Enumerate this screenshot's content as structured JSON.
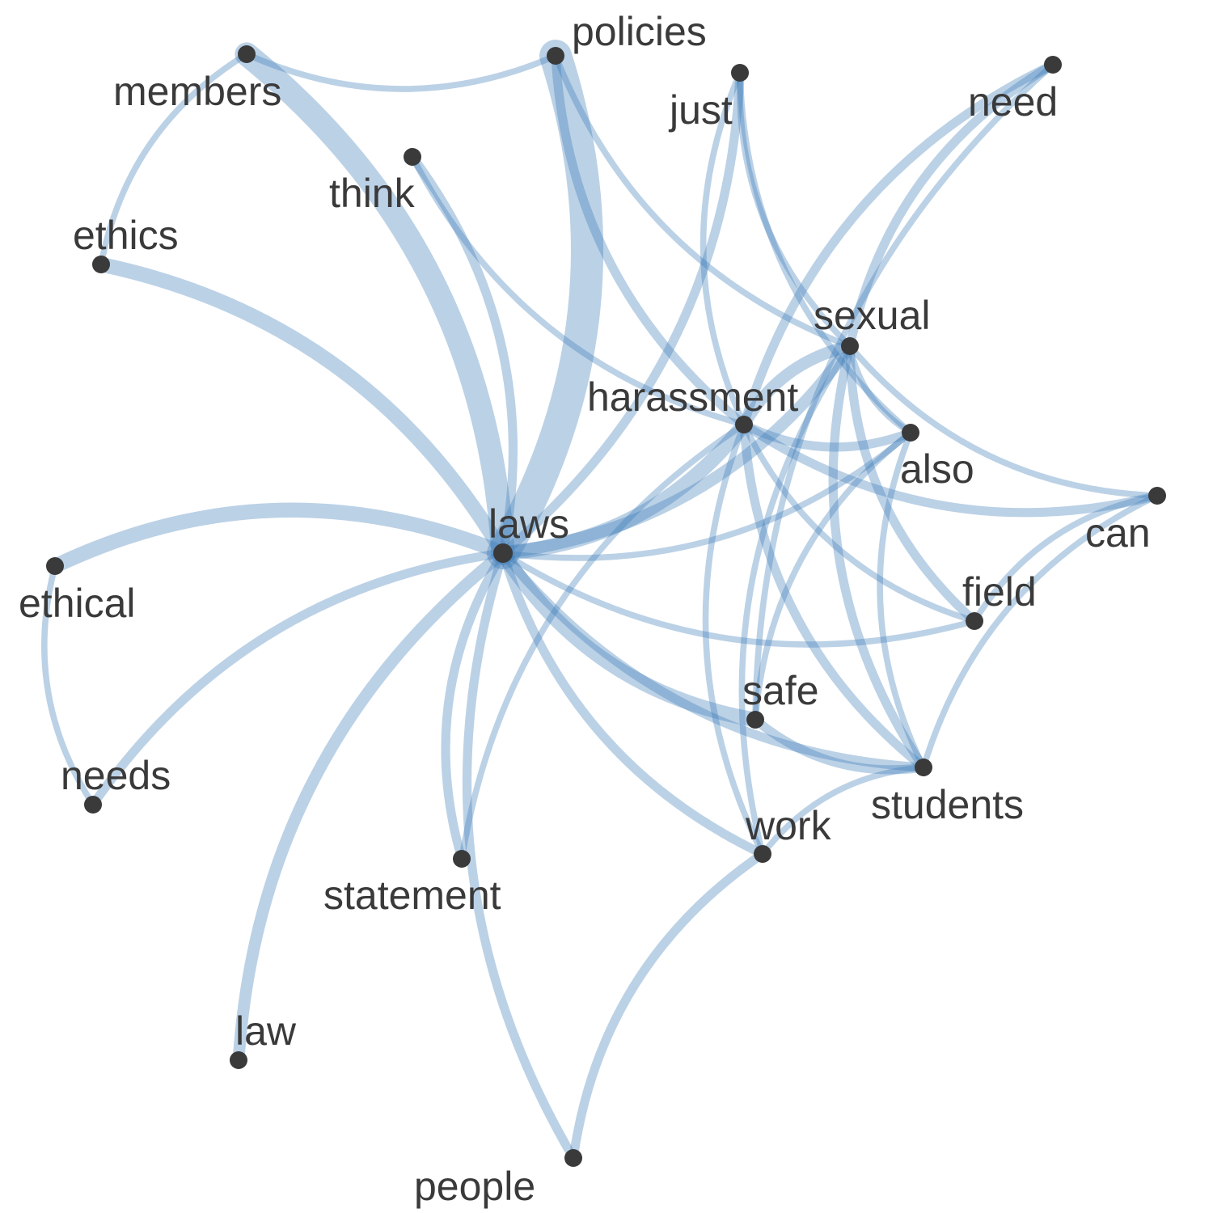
{
  "graph": {
    "edge_color": "#3d7ab8",
    "node_color": "#3a3a3a",
    "label_color": "#3a3a3a",
    "nodes": [
      {
        "id": "laws",
        "label": "laws"
      },
      {
        "id": "policies",
        "label": "policies"
      },
      {
        "id": "members",
        "label": "members"
      },
      {
        "id": "just",
        "label": "just"
      },
      {
        "id": "need",
        "label": "need"
      },
      {
        "id": "think",
        "label": "think"
      },
      {
        "id": "ethics",
        "label": "ethics"
      },
      {
        "id": "sexual",
        "label": "sexual"
      },
      {
        "id": "harassment",
        "label": "harassment"
      },
      {
        "id": "also",
        "label": "also"
      },
      {
        "id": "can",
        "label": "can"
      },
      {
        "id": "ethical",
        "label": "ethical"
      },
      {
        "id": "field",
        "label": "field"
      },
      {
        "id": "safe",
        "label": "safe"
      },
      {
        "id": "needs",
        "label": "needs"
      },
      {
        "id": "students",
        "label": "students"
      },
      {
        "id": "work",
        "label": "work"
      },
      {
        "id": "statement",
        "label": "statement"
      },
      {
        "id": "law",
        "label": "law"
      },
      {
        "id": "people",
        "label": "people"
      }
    ],
    "edges": [
      {
        "source": "laws",
        "target": "policies",
        "weight": 10
      },
      {
        "source": "laws",
        "target": "members",
        "weight": 7
      },
      {
        "source": "laws",
        "target": "ethics",
        "weight": 4
      },
      {
        "source": "laws",
        "target": "ethical",
        "weight": 4
      },
      {
        "source": "laws",
        "target": "harassment",
        "weight": 4
      },
      {
        "source": "laws",
        "target": "sexual",
        "weight": 3
      },
      {
        "source": "laws",
        "target": "safe",
        "weight": 4
      },
      {
        "source": "laws",
        "target": "law",
        "weight": 3
      },
      {
        "source": "laws",
        "target": "think",
        "weight": 2
      },
      {
        "source": "laws",
        "target": "just",
        "weight": 2
      },
      {
        "source": "laws",
        "target": "needs",
        "weight": 2
      },
      {
        "source": "laws",
        "target": "statement",
        "weight": 2
      },
      {
        "source": "laws",
        "target": "people",
        "weight": 2
      },
      {
        "source": "laws",
        "target": "work",
        "weight": 2
      },
      {
        "source": "laws",
        "target": "students",
        "weight": 2
      },
      {
        "source": "laws",
        "target": "field",
        "weight": 1
      },
      {
        "source": "laws",
        "target": "also",
        "weight": 1
      },
      {
        "source": "members",
        "target": "policies",
        "weight": 1
      },
      {
        "source": "members",
        "target": "ethics",
        "weight": 1
      },
      {
        "source": "policies",
        "target": "harassment",
        "weight": 2
      },
      {
        "source": "policies",
        "target": "sexual",
        "weight": 1
      },
      {
        "source": "think",
        "target": "harassment",
        "weight": 1
      },
      {
        "source": "just",
        "target": "harassment",
        "weight": 1
      },
      {
        "source": "just",
        "target": "also",
        "weight": 1
      },
      {
        "source": "just",
        "target": "sexual",
        "weight": 1
      },
      {
        "source": "need",
        "target": "harassment",
        "weight": 2
      },
      {
        "source": "need",
        "target": "sexual",
        "weight": 2
      },
      {
        "source": "need",
        "target": "safe",
        "weight": 1
      },
      {
        "source": "ethical",
        "target": "needs",
        "weight": 1
      },
      {
        "source": "sexual",
        "target": "harassment",
        "weight": 3
      },
      {
        "source": "sexual",
        "target": "also",
        "weight": 1
      },
      {
        "source": "sexual",
        "target": "can",
        "weight": 1
      },
      {
        "source": "sexual",
        "target": "field",
        "weight": 2
      },
      {
        "source": "sexual",
        "target": "students",
        "weight": 2
      },
      {
        "source": "sexual",
        "target": "work",
        "weight": 1
      },
      {
        "source": "harassment",
        "target": "also",
        "weight": 2
      },
      {
        "source": "harassment",
        "target": "can",
        "weight": 2
      },
      {
        "source": "harassment",
        "target": "field",
        "weight": 1
      },
      {
        "source": "harassment",
        "target": "students",
        "weight": 2
      },
      {
        "source": "harassment",
        "target": "work",
        "weight": 1
      },
      {
        "source": "harassment",
        "target": "statement",
        "weight": 1
      },
      {
        "source": "also",
        "target": "students",
        "weight": 1
      },
      {
        "source": "also",
        "target": "safe",
        "weight": 1
      },
      {
        "source": "can",
        "target": "field",
        "weight": 1
      },
      {
        "source": "can",
        "target": "students",
        "weight": 1
      },
      {
        "source": "safe",
        "target": "students",
        "weight": 2
      },
      {
        "source": "students",
        "target": "work",
        "weight": 1
      },
      {
        "source": "work",
        "target": "people",
        "weight": 2
      }
    ]
  }
}
